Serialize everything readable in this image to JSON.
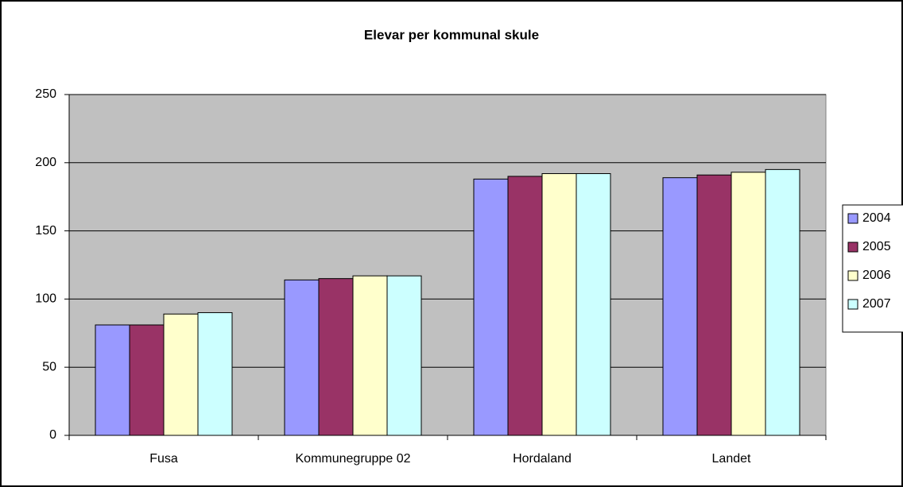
{
  "chart_data": {
    "type": "bar",
    "title": "Elevar per kommunal skule",
    "categories": [
      "Fusa",
      "Kommunegruppe 02",
      "Hordaland",
      "Landet"
    ],
    "series": [
      {
        "name": "2004",
        "color": "#9999ff",
        "values": [
          81,
          114,
          188,
          189
        ]
      },
      {
        "name": "2005",
        "color": "#993366",
        "values": [
          81,
          115,
          190,
          191
        ]
      },
      {
        "name": "2006",
        "color": "#ffffcc",
        "values": [
          89,
          117,
          192,
          193
        ]
      },
      {
        "name": "2007",
        "color": "#ccffff",
        "values": [
          90,
          117,
          192,
          195
        ]
      }
    ],
    "ylim": [
      0,
      250
    ],
    "yticks": [
      0,
      50,
      100,
      150,
      200,
      250
    ],
    "grid": true,
    "legend": "right"
  }
}
